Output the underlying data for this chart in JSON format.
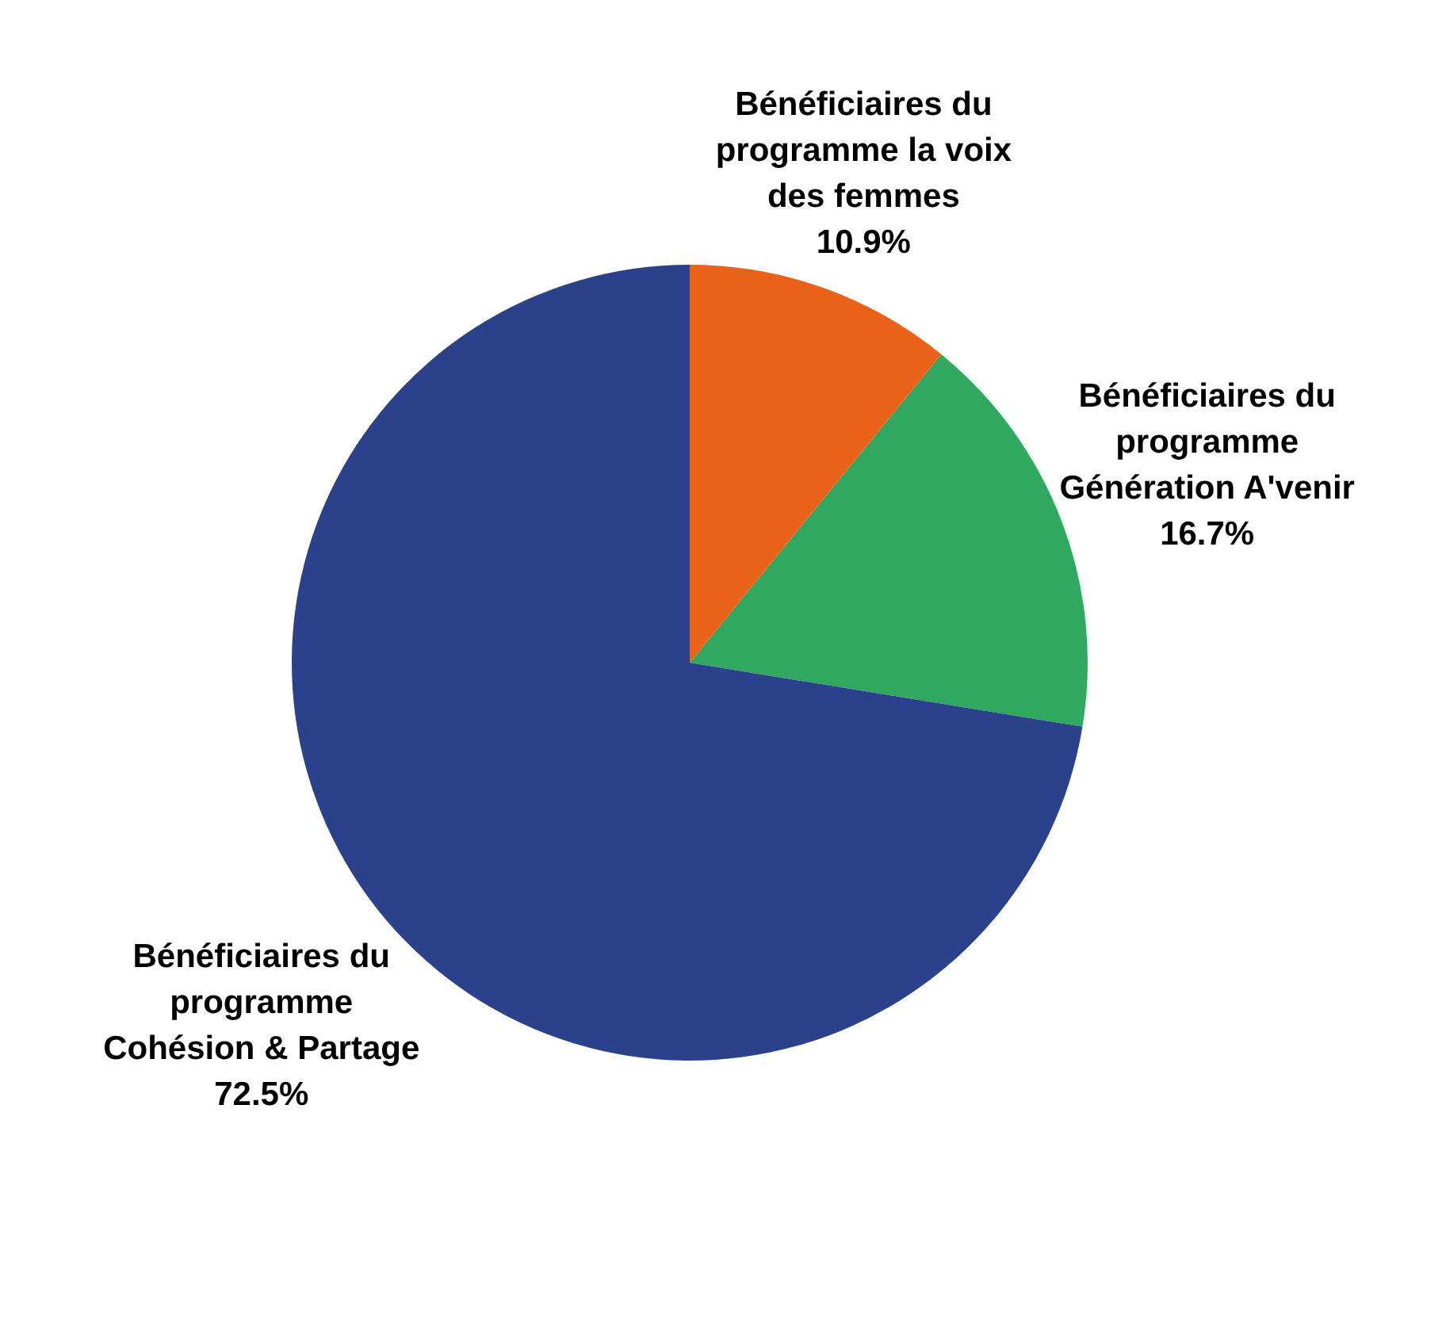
{
  "chart_data": {
    "type": "pie",
    "categories": [
      "Bénéficiaires du\nprogramme la voix\ndes femmes",
      "Bénéficiaires du\nprogramme\nGénération A'venir",
      "Bénéficiaires du\nprogramme\nCohésion & Partage"
    ],
    "values": [
      10.9,
      16.7,
      72.5
    ],
    "colors": [
      "#e8621a",
      "#31a85f",
      "#2b418c"
    ],
    "value_labels": [
      "10.9%",
      "16.7%",
      "72.5%"
    ],
    "legend": false
  }
}
